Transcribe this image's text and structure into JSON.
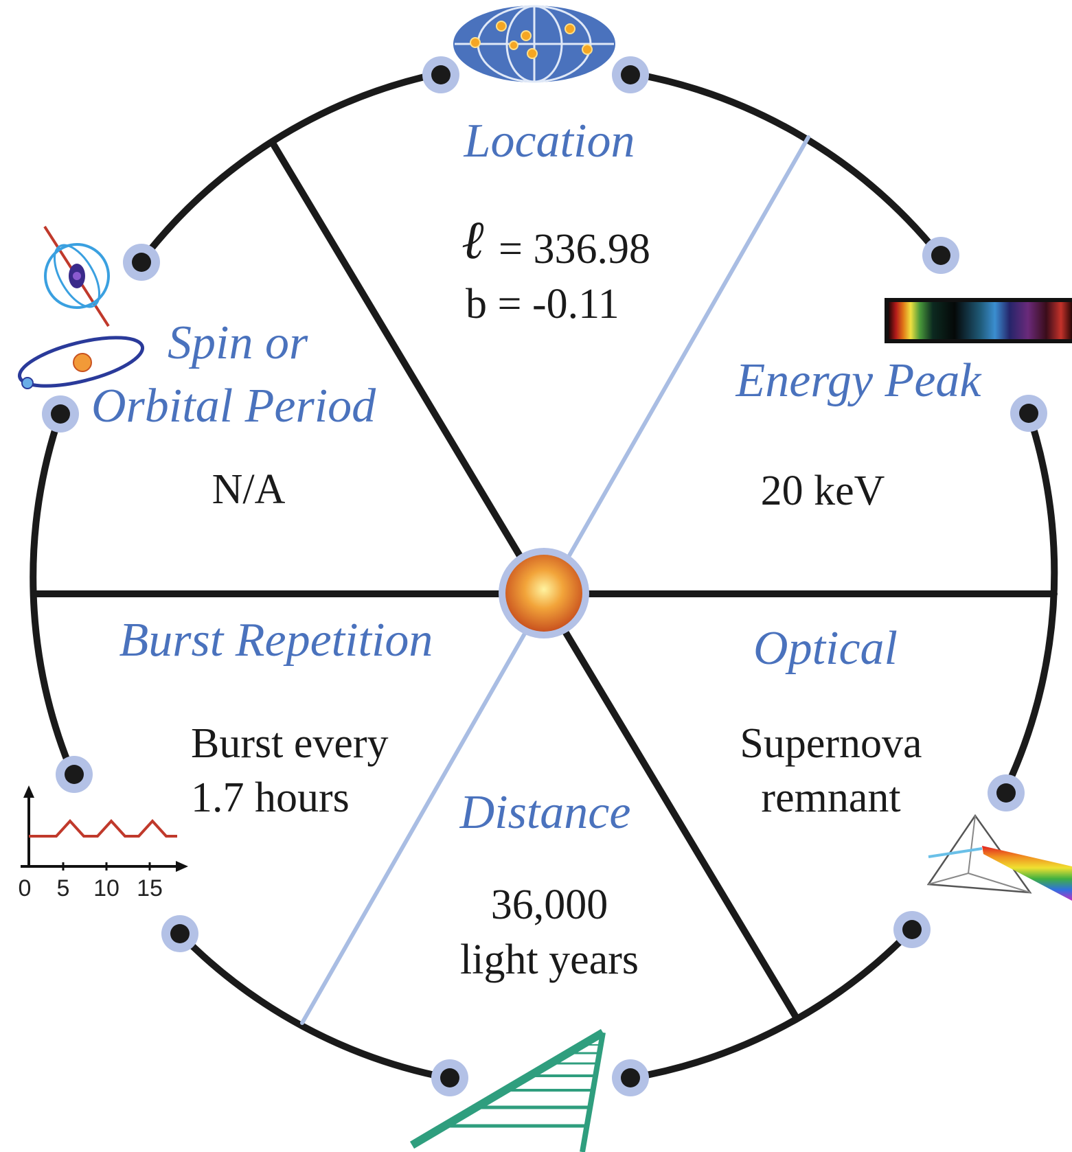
{
  "colors": {
    "heading": "#4a72bd",
    "ring": "#1a1a1a",
    "spoke_light": "#a9bde3",
    "node_halo": "#b3c1e6",
    "ladder": "#2f9e7e",
    "globe": "#4a72bd"
  },
  "sections": {
    "location": {
      "title": "Location",
      "l_symbol": "ℓ",
      "l_value": "= 336.98",
      "b_value": "b = -0.11"
    },
    "energy": {
      "title": "Energy Peak",
      "value": "20 keV"
    },
    "spin": {
      "title_line1": "Spin or",
      "title_line2": "Orbital Period",
      "value": "N/A"
    },
    "burst": {
      "title": "Burst Repetition",
      "value_line1": "Burst every",
      "value_line2": "1.7 hours",
      "axis_ticks": [
        "0",
        "5",
        "10",
        "15"
      ]
    },
    "distance": {
      "title": "Distance",
      "value_line1": "36,000",
      "value_line2": "light years"
    },
    "optical": {
      "title": "Optical",
      "value_line1": "Supernova",
      "value_line2": "remnant"
    }
  },
  "icons": {
    "location": "sky-map-globe-icon",
    "energy": "spectrum-bar-icon",
    "spin": "pulsar-orbit-icon",
    "burst": "burst-timeline-icon",
    "distance": "distance-ladder-icon",
    "optical": "prism-icon",
    "center": "source-star-icon"
  }
}
